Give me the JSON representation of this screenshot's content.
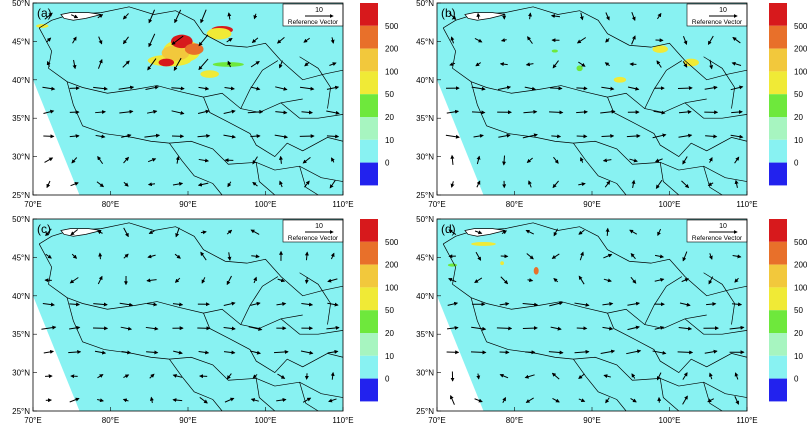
{
  "colorbar": {
    "levels": [
      "500",
      "200",
      "100",
      "50",
      "20",
      "10",
      "0"
    ],
    "colors": [
      "#d7191c",
      "#e8702a",
      "#f2c83c",
      "#f0ea36",
      "#6ee83c",
      "#a7f5c0",
      "#88f2f2",
      "#2222ee"
    ]
  },
  "ref_vector": {
    "value": "10",
    "label": "Reference Vector"
  },
  "x_ticks": [
    "70°E",
    "80°E",
    "90°E",
    "100°E",
    "110°E"
  ],
  "y_ticks": [
    "50°N",
    "45°N",
    "40°N",
    "35°N",
    "30°N",
    "25°N"
  ],
  "panels": [
    {
      "id": "a",
      "label": "(a)"
    },
    {
      "id": "b",
      "label": "(b)"
    },
    {
      "id": "c",
      "label": "(c)"
    },
    {
      "id": "d",
      "label": "(d)"
    }
  ],
  "map_colors": {
    "field": "#88f2f2",
    "border": "#000000",
    "arrow": "#000000"
  }
}
